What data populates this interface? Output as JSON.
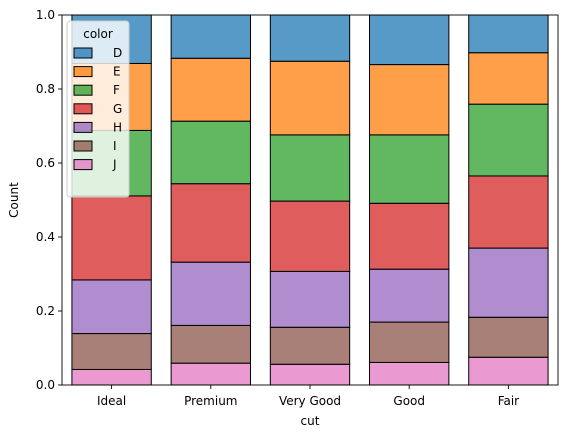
{
  "chart_data": {
    "type": "bar",
    "stacked": true,
    "normalized": true,
    "xlabel": "cut",
    "ylabel": "Count",
    "ylim": [
      0,
      1
    ],
    "yticks": [
      "0.0",
      "0.2",
      "0.4",
      "0.6",
      "0.8",
      "1.0"
    ],
    "categories": [
      "Ideal",
      "Premium",
      "Very Good",
      "Good",
      "Fair"
    ],
    "legend": {
      "title": "color",
      "placement": "top-left"
    },
    "series": [
      {
        "name": "J",
        "color": "#e377c2",
        "values": [
          0.042,
          0.059,
          0.056,
          0.061,
          0.075
        ]
      },
      {
        "name": "I",
        "color": "#8c564b",
        "values": [
          0.097,
          0.102,
          0.1,
          0.109,
          0.108
        ]
      },
      {
        "name": "H",
        "color": "#9467bd",
        "values": [
          0.145,
          0.171,
          0.151,
          0.143,
          0.187
        ]
      },
      {
        "name": "G",
        "color": "#d62728",
        "values": [
          0.227,
          0.212,
          0.19,
          0.178,
          0.195
        ]
      },
      {
        "name": "F",
        "color": "#2ca02c",
        "values": [
          0.177,
          0.169,
          0.179,
          0.185,
          0.194
        ]
      },
      {
        "name": "E",
        "color": "#ff7f0e",
        "values": [
          0.181,
          0.17,
          0.199,
          0.19,
          0.139
        ]
      },
      {
        "name": "D",
        "color": "#1f77b4",
        "values": [
          0.131,
          0.117,
          0.125,
          0.134,
          0.102
        ]
      }
    ]
  }
}
